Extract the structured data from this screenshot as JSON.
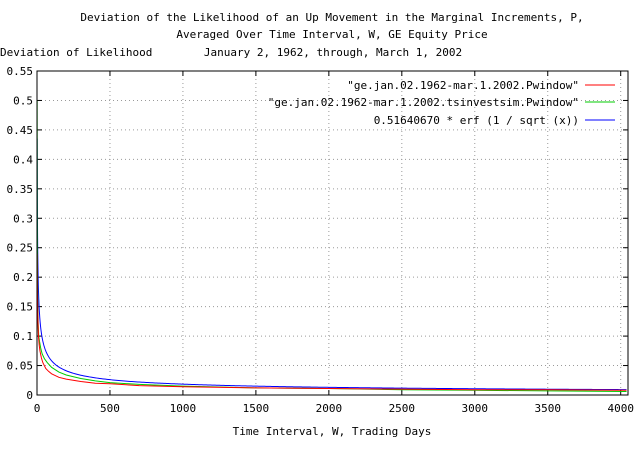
{
  "chart_data": {
    "type": "line",
    "title_lines": [
      "Deviation of the Likelihood of an Up Movement in the Marginal Increments, P,",
      "Averaged Over Time Interval, W, GE Equity Price",
      "January 2, 1962, through, March 1, 2002"
    ],
    "ylabel": "Deviation of Likelihood",
    "xlabel": "Time Interval, W, Trading Days",
    "xlim": [
      0,
      4050
    ],
    "ylim": [
      0,
      0.55
    ],
    "xticks": [
      "0",
      "500",
      "1000",
      "1500",
      "2000",
      "2500",
      "3000",
      "3500",
      "4000"
    ],
    "yticks": [
      "0",
      "0.05",
      "0.1",
      "0.15",
      "0.2",
      "0.25",
      "0.3",
      "0.35",
      "0.4",
      "0.45",
      "0.5",
      "0.55"
    ],
    "grid": true,
    "legend_position": "top-right",
    "series": [
      {
        "name": "\"ge.jan.02.1962-mar.1.2002.Pwindow\"",
        "color": "#ff0000",
        "x": [
          1,
          3,
          6,
          10,
          15,
          20,
          30,
          40,
          60,
          80,
          100,
          150,
          200,
          300,
          400,
          500,
          700,
          1000,
          1500,
          2000,
          2500,
          3000,
          3500,
          4040
        ],
        "y": [
          0.24,
          0.17,
          0.13,
          0.1,
          0.085,
          0.075,
          0.063,
          0.055,
          0.045,
          0.04,
          0.036,
          0.03,
          0.027,
          0.023,
          0.02,
          0.019,
          0.016,
          0.014,
          0.012,
          0.011,
          0.01,
          0.009,
          0.009,
          0.008
        ]
      },
      {
        "name": "\"ge.jan.02.1962-mar.1.2002.tsinvestsim.Pwindow\"",
        "color": "#00cc00",
        "x": [
          1,
          2,
          3,
          5,
          8,
          12,
          18,
          25,
          35,
          50,
          70,
          100,
          150,
          200,
          300,
          400,
          500,
          700,
          1000,
          1500,
          2000,
          2500,
          3000,
          3500,
          4040
        ],
        "y": [
          0.5,
          0.3,
          0.22,
          0.16,
          0.12,
          0.1,
          0.09,
          0.08,
          0.07,
          0.062,
          0.055,
          0.047,
          0.039,
          0.034,
          0.028,
          0.024,
          0.021,
          0.018,
          0.015,
          0.012,
          0.011,
          0.009,
          0.008,
          0.007,
          0.006
        ]
      },
      {
        "name": "0.51640670 * erf (1 / sqrt (x))",
        "color": "#0000ff",
        "formula": "0.51640670 * erf(1 / sqrt(x))"
      }
    ]
  }
}
